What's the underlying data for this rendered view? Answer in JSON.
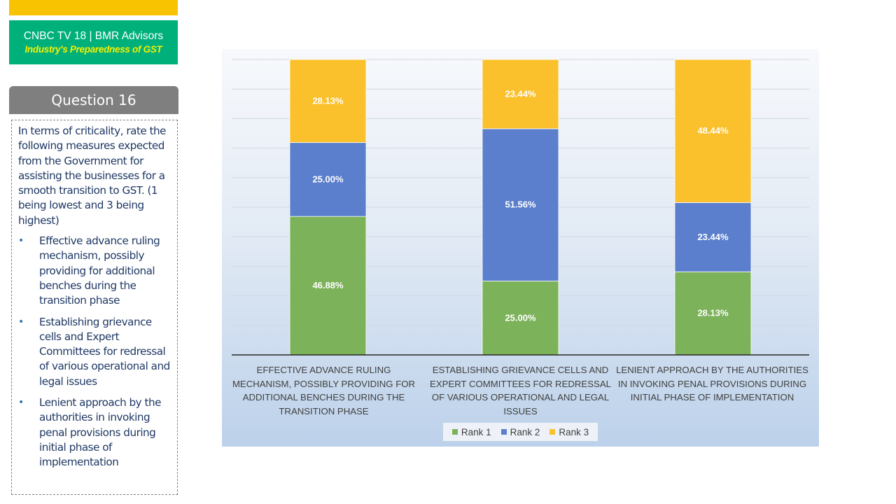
{
  "brand": {
    "title": "CNBC TV 18 | BMR Advisors",
    "subtitle": "Industry's Preparedness of GST"
  },
  "question": {
    "header": "Question 16",
    "text": "In terms of criticality, rate the following measures expected from the Government for assisting the businesses for a smooth transition to GST. (1 being lowest and 3 being highest)",
    "bullets": [
      "Effective advance ruling mechanism, possibly providing for additional benches during the transition phase",
      "Establishing grievance cells and Expert Committees for redressal of various operational and legal issues",
      "Lenient approach by the authorities in invoking penal provisions during initial phase of implementation"
    ]
  },
  "chart_data": {
    "type": "bar",
    "stacked": true,
    "categories": [
      "EFFECTIVE ADVANCE RULING MECHANISM, POSSIBLY PROVIDING FOR ADDITIONAL BENCHES DURING THE TRANSITION PHASE",
      "ESTABLISHING GRIEVANCE CELLS AND EXPERT COMMITTEES FOR REDRESSAL OF VARIOUS OPERATIONAL AND LEGAL ISSUES",
      "LENIENT APPROACH BY THE AUTHORITIES IN INVOKING PENAL PROVISIONS DURING INITIAL PHASE OF IMPLEMENTATION"
    ],
    "series": [
      {
        "name": "Rank 1",
        "color": "#7cb25a",
        "values": [
          46.88,
          25.0,
          28.13
        ],
        "labels": [
          "46.88%",
          "25.00%",
          "28.13%"
        ]
      },
      {
        "name": "Rank 2",
        "color": "#5b7fcc",
        "values": [
          25.0,
          51.56,
          23.44
        ],
        "labels": [
          "25.00%",
          "51.56%",
          "23.44%"
        ]
      },
      {
        "name": "Rank 3",
        "color": "#fbc12c",
        "values": [
          28.13,
          23.44,
          48.44
        ],
        "labels": [
          "28.13%",
          "23.44%",
          "48.44%"
        ]
      }
    ],
    "ylim": [
      0,
      100
    ],
    "grid": true,
    "legend_position": "bottom"
  }
}
